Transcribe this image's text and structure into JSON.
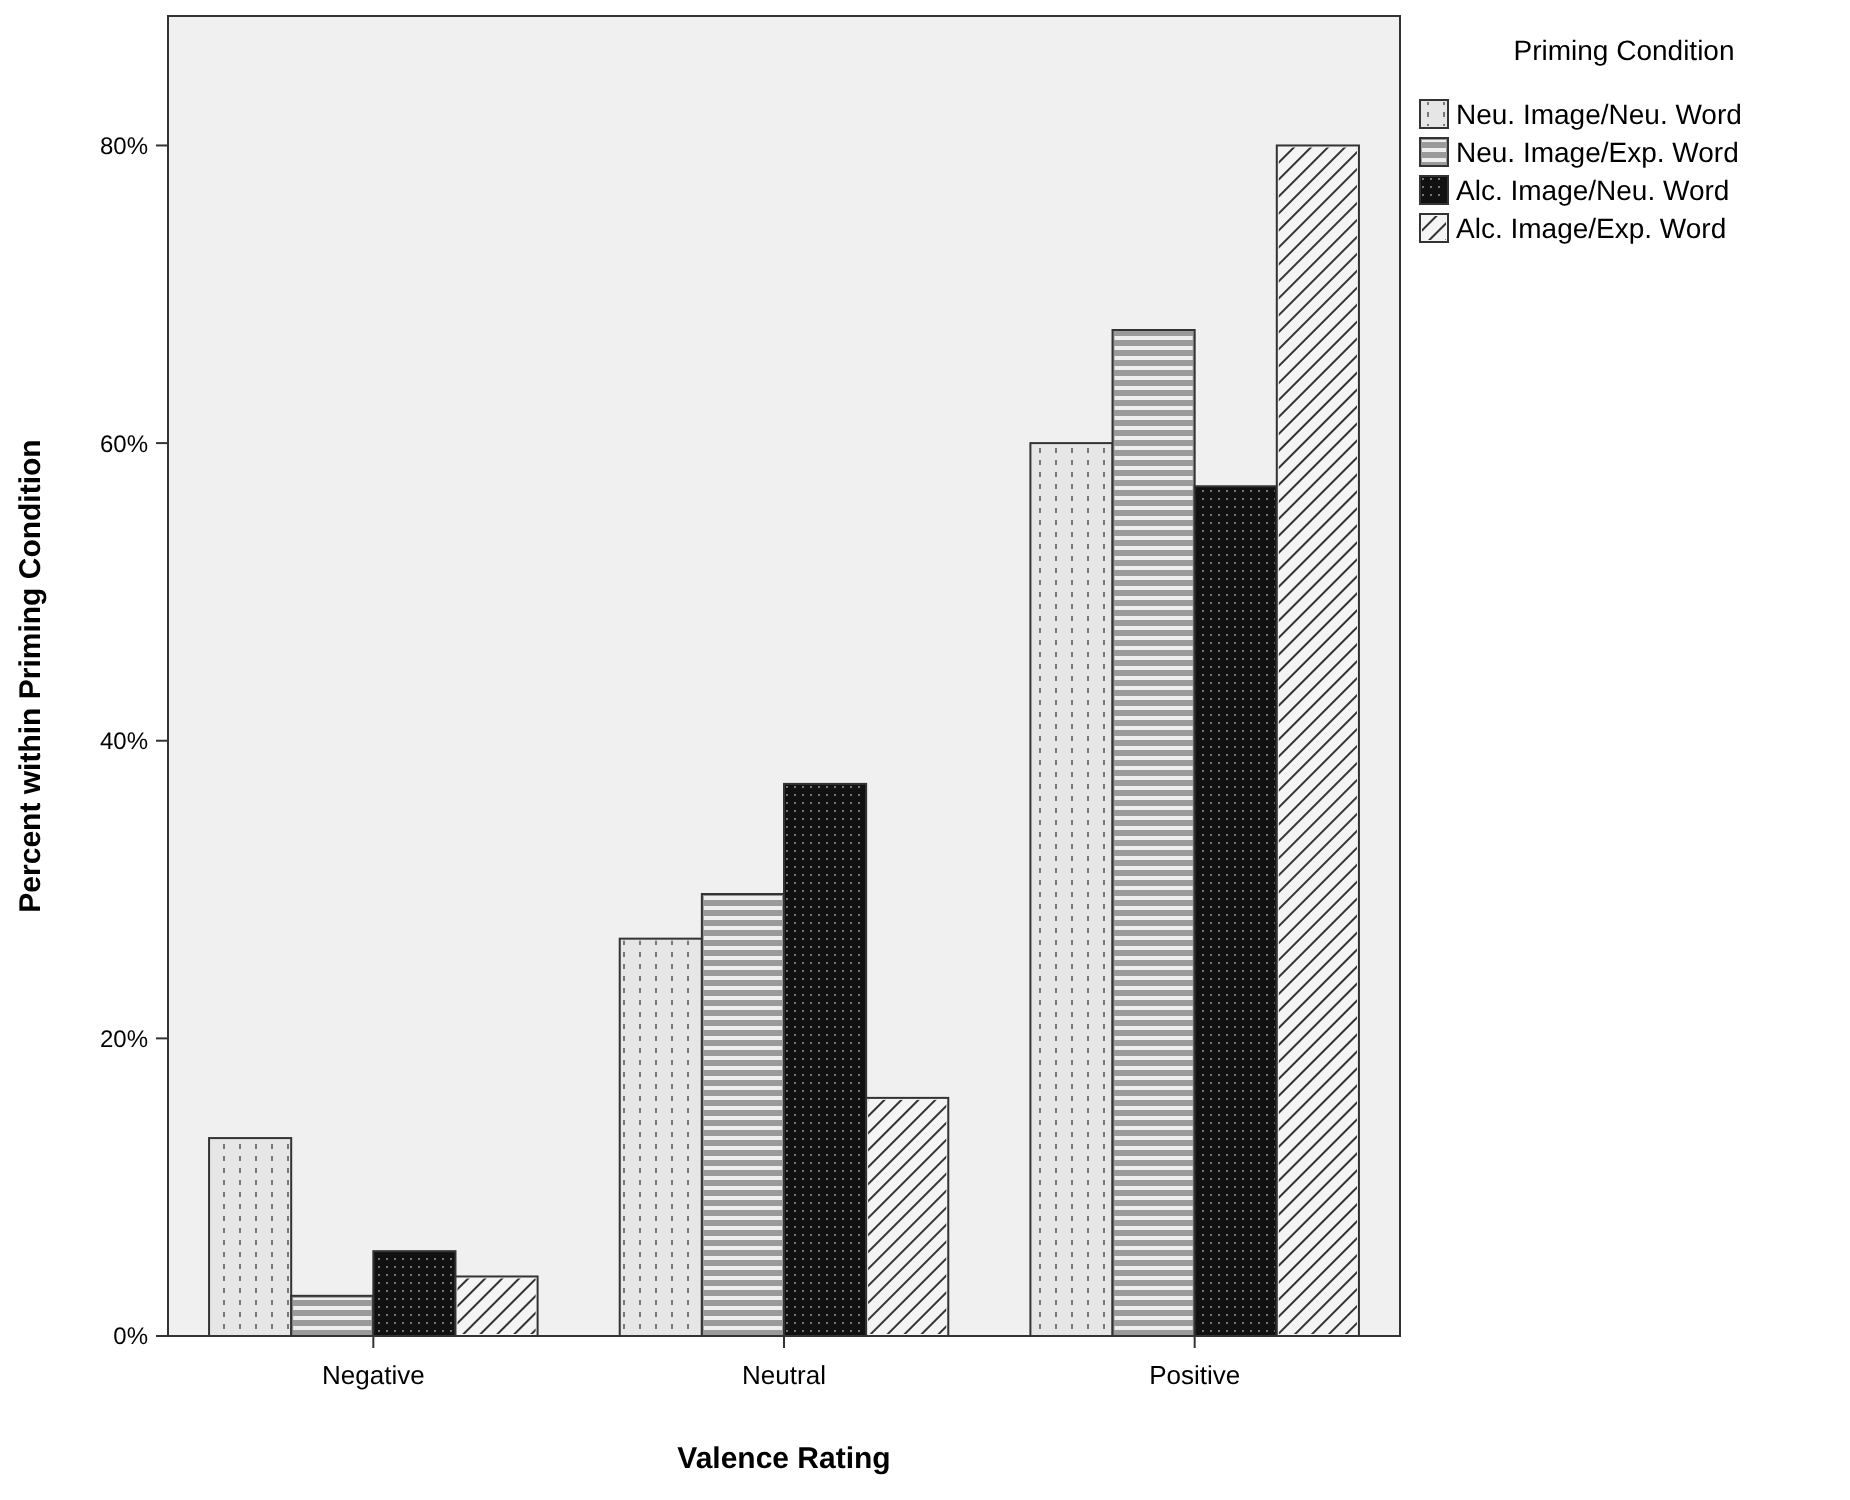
{
  "chart_data": {
    "type": "bar",
    "xlabel": "Valence Rating",
    "ylabel": "Percent within Priming Condition",
    "legend_title": "Priming Condition",
    "legend": "top right",
    "grid": false,
    "categories": [
      "Negative",
      "Neutral",
      "Positive"
    ],
    "ylim": [
      0,
      88.7
    ],
    "yticks": [
      {
        "value": 0,
        "label": "0%"
      },
      {
        "value": 20,
        "label": "20%"
      },
      {
        "value": 40,
        "label": "40%"
      },
      {
        "value": 60,
        "label": "60%"
      },
      {
        "value": 80,
        "label": "80%"
      }
    ],
    "series": [
      {
        "name": "Neu. Image/Neu. Word",
        "color": "#e6e6e6",
        "values": [
          13.3,
          26.7,
          60.0
        ]
      },
      {
        "name": "Neu. Image/Exp. Word",
        "color": "#9a9a9a",
        "values": [
          2.7,
          29.7,
          67.6
        ]
      },
      {
        "name": "Alc. Image/Neu. Word",
        "color": "#111111",
        "values": [
          5.7,
          37.1,
          57.1
        ]
      },
      {
        "name": "Alc. Image/Exp. Word",
        "color": "#f4f4f4",
        "values": [
          4.0,
          16.0,
          80.0
        ]
      }
    ]
  }
}
